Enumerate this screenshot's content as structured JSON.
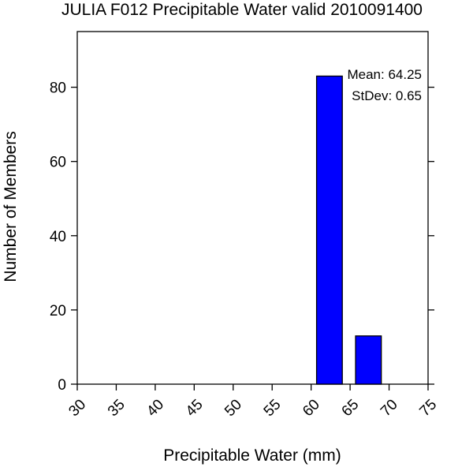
{
  "chart_data": {
    "type": "bar",
    "title": "JULIA F012 Precipitable Water valid 2010091400",
    "xlabel": "Precipitable Water (mm)",
    "ylabel": "Number of Members",
    "xlim": [
      30,
      75
    ],
    "ylim": [
      0,
      95
    ],
    "xticks": [
      "30",
      "35",
      "40",
      "45",
      "50",
      "55",
      "60",
      "65",
      "70",
      "75"
    ],
    "yticks": [
      "0",
      "20",
      "40",
      "60",
      "80"
    ],
    "bars": [
      {
        "x0": 60.7,
        "x1": 64.0,
        "value": 83
      },
      {
        "x0": 65.7,
        "x1": 69.0,
        "value": 13
      }
    ],
    "bar_color": "#0000ff",
    "grid": false,
    "annotations": [
      "Mean: 64.25",
      "StDev: 0.65"
    ]
  }
}
